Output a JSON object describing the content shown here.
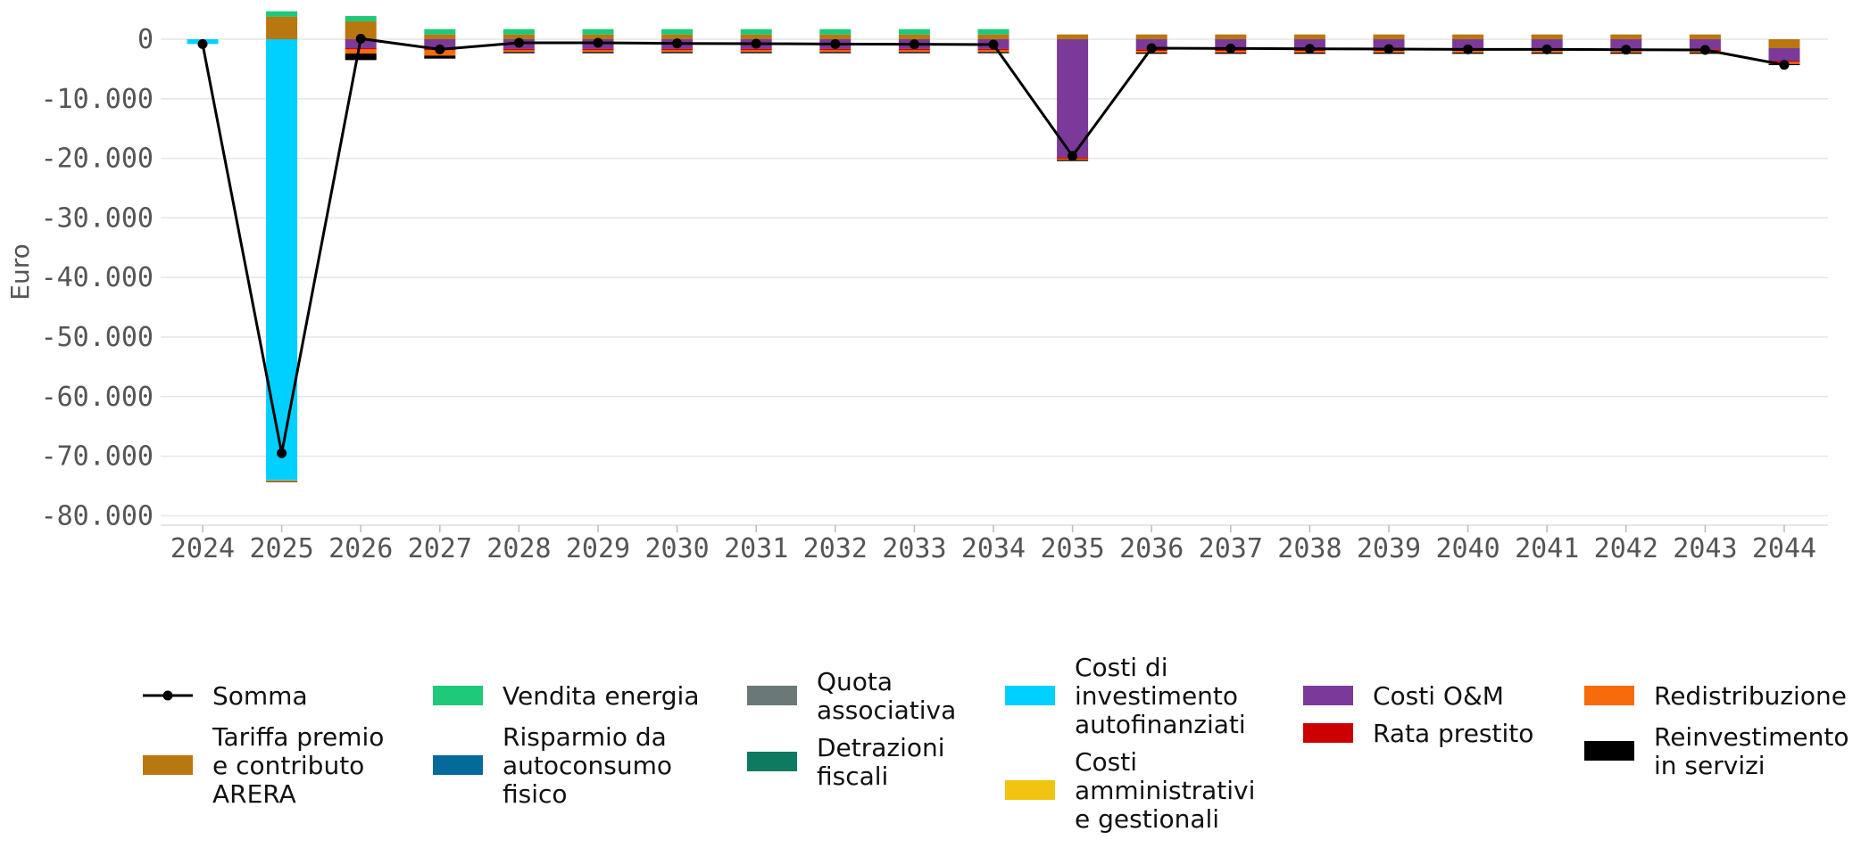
{
  "chart_data": {
    "type": "bar",
    "stacked": true,
    "xlabel": "",
    "ylabel": "Euro",
    "ylim": [
      -82000,
      4500
    ],
    "yticks": [
      0,
      -10000,
      -20000,
      -30000,
      -40000,
      -50000,
      -60000,
      -70000,
      -80000
    ],
    "ytick_labels": [
      "0",
      "-10.000",
      "-20.000",
      "-30.000",
      "-40.000",
      "-50.000",
      "-60.000",
      "-70.000",
      "-80.000"
    ],
    "grid": true,
    "legend_position": "bottom",
    "categories": [
      "2024",
      "2025",
      "2026",
      "2027",
      "2028",
      "2029",
      "2030",
      "2031",
      "2032",
      "2033",
      "2034",
      "2035",
      "2036",
      "2037",
      "2038",
      "2039",
      "2040",
      "2041",
      "2042",
      "2043",
      "2044"
    ],
    "series": [
      {
        "name": "Tariffa premio e contributo ARERA",
        "color": "#b8770f",
        "values": [
          0,
          3800,
          3000,
          800,
          800,
          800,
          800,
          800,
          800,
          800,
          800,
          800,
          800,
          800,
          800,
          800,
          800,
          800,
          800,
          800,
          -1500
        ]
      },
      {
        "name": "Vendita energia",
        "color": "#1fc97a",
        "values": [
          0,
          900,
          900,
          900,
          900,
          900,
          900,
          900,
          900,
          900,
          900,
          0,
          0,
          0,
          0,
          0,
          0,
          0,
          0,
          0,
          0
        ]
      },
      {
        "name": "Risparmio da autoconsumo fisico",
        "color": "#046a9b",
        "values": [
          0,
          0,
          0,
          0,
          0,
          0,
          0,
          0,
          0,
          0,
          0,
          0,
          0,
          0,
          0,
          0,
          0,
          0,
          0,
          0,
          0
        ]
      },
      {
        "name": "Quota associativa",
        "color": "#6b7878",
        "values": [
          0,
          0,
          0,
          0,
          0,
          0,
          0,
          0,
          0,
          0,
          0,
          0,
          0,
          0,
          0,
          0,
          0,
          0,
          0,
          0,
          0
        ]
      },
      {
        "name": "Detrazioni fiscali",
        "color": "#0e7a5f",
        "values": [
          0,
          0,
          0,
          0,
          0,
          0,
          0,
          0,
          0,
          0,
          0,
          0,
          0,
          0,
          0,
          0,
          0,
          0,
          0,
          0,
          0
        ]
      },
      {
        "name": "Costi di investimento autofinanziati",
        "color": "#00d0ff",
        "values": [
          -800,
          -74000,
          0,
          0,
          0,
          0,
          0,
          0,
          0,
          0,
          0,
          0,
          0,
          0,
          0,
          0,
          0,
          0,
          0,
          0,
          0
        ]
      },
      {
        "name": "Costi amministrativi e gestionali",
        "color": "#f2c40f",
        "values": [
          0,
          -100,
          0,
          0,
          0,
          0,
          0,
          0,
          0,
          0,
          0,
          0,
          0,
          0,
          0,
          0,
          0,
          0,
          0,
          0,
          0
        ]
      },
      {
        "name": "Costi O&M",
        "color": "#7b3a9a",
        "values": [
          0,
          0,
          -1500,
          -1600,
          -1600,
          -1600,
          -1600,
          -1600,
          -1600,
          -1600,
          -1600,
          -19800,
          -1700,
          -1700,
          -1700,
          -1700,
          -1700,
          -1700,
          -1700,
          -1700,
          -2100
        ]
      },
      {
        "name": "Rata prestito",
        "color": "#cc0000",
        "values": [
          0,
          0,
          -200,
          -250,
          -250,
          -250,
          -250,
          -250,
          -250,
          -250,
          -250,
          -250,
          -250,
          -250,
          -250,
          -250,
          -250,
          -250,
          -250,
          -250,
          -250
        ]
      },
      {
        "name": "Redistribuzione",
        "color": "#f76b0a",
        "values": [
          0,
          -100,
          -700,
          -900,
          -300,
          -300,
          -300,
          -300,
          -300,
          -300,
          -300,
          -200,
          -300,
          -300,
          -300,
          -300,
          -300,
          -300,
          -300,
          -300,
          -300
        ]
      },
      {
        "name": "Reinvestimento in servizi",
        "color": "#000000",
        "values": [
          0,
          -100,
          -1100,
          -500,
          -200,
          -200,
          -200,
          -200,
          -200,
          -200,
          -200,
          -200,
          -200,
          -200,
          -200,
          -200,
          -200,
          -200,
          -200,
          -200,
          -200
        ]
      }
    ],
    "line": {
      "name": "Somma",
      "color": "#000000",
      "values": [
        -800,
        -69500,
        100,
        -1700,
        -600,
        -600,
        -700,
        -750,
        -800,
        -850,
        -900,
        -19600,
        -1500,
        -1550,
        -1600,
        -1650,
        -1700,
        -1700,
        -1750,
        -1800,
        -4300
      ]
    }
  }
}
